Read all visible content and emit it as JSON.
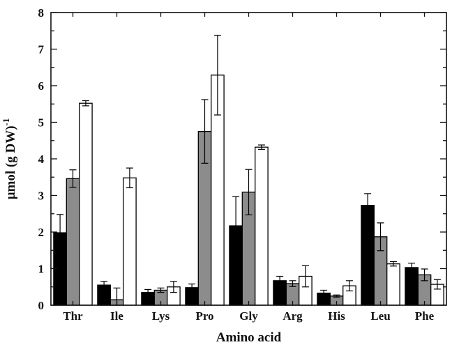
{
  "chart_data": {
    "type": "bar",
    "xlabel": "Amino acid",
    "ylabel_main": "µmol (g DW)",
    "ylabel_sup": "-1",
    "categories": [
      "Thr",
      "Ile",
      "Lys",
      "Pro",
      "Gly",
      "Arg",
      "His",
      "Leu",
      "Phe"
    ],
    "series": [
      {
        "color": "#000000",
        "values": [
          1.98,
          0.55,
          0.35,
          0.48,
          2.17,
          0.67,
          0.33,
          2.73,
          1.03
        ],
        "errors": [
          0.5,
          0.1,
          0.08,
          0.1,
          0.8,
          0.12,
          0.08,
          0.32,
          0.12
        ]
      },
      {
        "color": "#8c8c8c",
        "values": [
          3.46,
          0.15,
          0.41,
          4.75,
          3.09,
          0.59,
          0.25,
          1.87,
          0.83
        ],
        "errors": [
          0.24,
          0.32,
          0.06,
          0.87,
          0.62,
          0.08,
          0.03,
          0.38,
          0.16
        ]
      },
      {
        "color": "#ffffff",
        "values": [
          5.52,
          3.48,
          0.5,
          6.29,
          4.32,
          0.79,
          0.53,
          1.13,
          0.57
        ],
        "errors": [
          0.07,
          0.27,
          0.15,
          1.09,
          0.06,
          0.29,
          0.14,
          0.06,
          0.13
        ]
      }
    ],
    "ylim": [
      0,
      8
    ],
    "yticks": [
      "0",
      "1",
      "2",
      "3",
      "4",
      "5",
      "6",
      "7",
      "8"
    ],
    "grid": false,
    "legend": "none"
  }
}
